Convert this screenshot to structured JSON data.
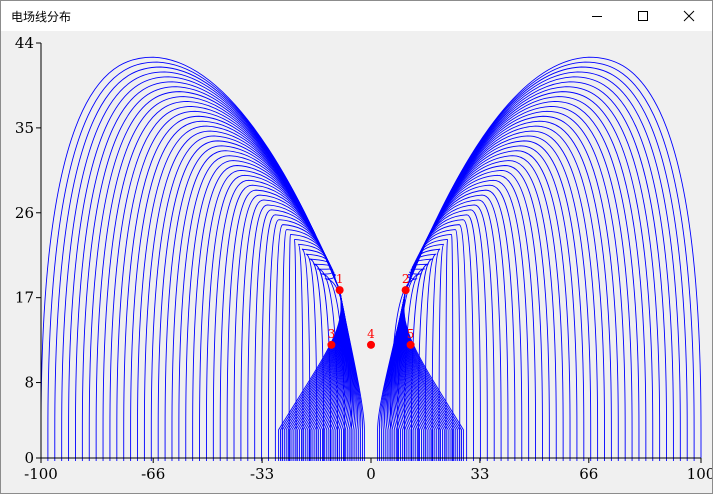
{
  "window": {
    "title": "电场线分布",
    "minimize_icon": "minimize-icon",
    "maximize_icon": "maximize-icon",
    "close_icon": "close-icon"
  },
  "chart_data": {
    "type": "line",
    "title": "",
    "xlabel": "",
    "ylabel": "",
    "xlim": [
      -100,
      100
    ],
    "ylim": [
      0,
      44
    ],
    "x_ticks": [
      -100,
      -66,
      -33,
      0,
      33,
      66,
      100
    ],
    "y_ticks": [
      0,
      8,
      17,
      26,
      35,
      44
    ],
    "grid": false,
    "line_color": "#0000ff",
    "charge_color": "#ff0000",
    "background_color": "#f0f0f0",
    "charges": [
      {
        "label": "1",
        "x": -9.5,
        "y": 17.8
      },
      {
        "label": "2",
        "x": 10.5,
        "y": 17.8
      },
      {
        "label": "3",
        "x": -12,
        "y": 12
      },
      {
        "label": "4",
        "x": 0,
        "y": 12
      },
      {
        "label": "5",
        "x": 12,
        "y": 12
      }
    ],
    "field_lines": {
      "count_per_side": 46,
      "outermost_outer_x": 100,
      "outermost_peak": {
        "x": 66,
        "y": 42.5
      },
      "innermost_inner_x": 33,
      "center_dip": {
        "x": 0,
        "y": 4
      },
      "baseline_y": 3
    }
  }
}
